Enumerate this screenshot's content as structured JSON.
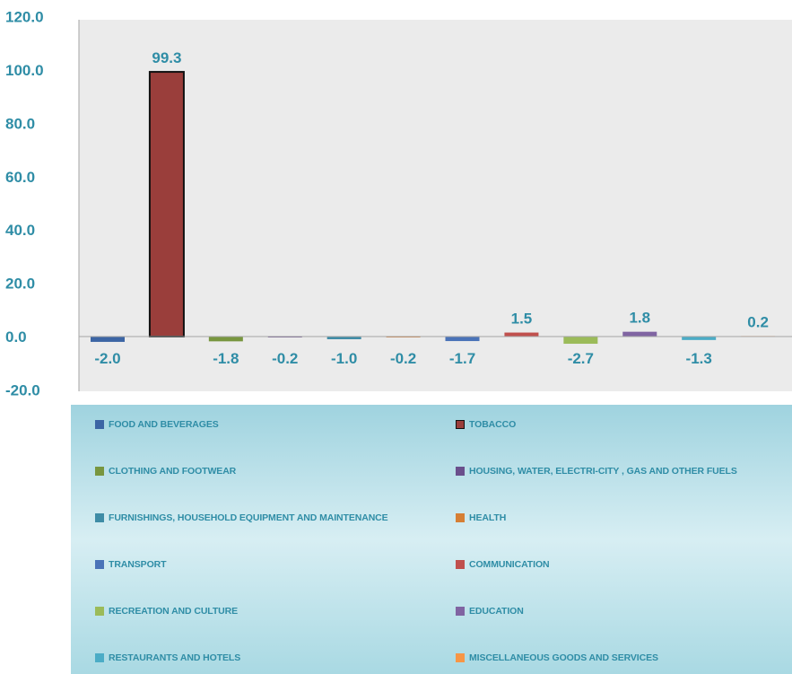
{
  "chart_data": {
    "type": "bar",
    "categories": [
      "FOOD AND BEVERAGES",
      "TOBACCO",
      "CLOTHING AND FOOTWEAR",
      "HOUSING, WATER, ELECTRI-CITY , GAS AND OTHER FUELS",
      "FURNISHINGS, HOUSEHOLD EQUIPMENT AND MAINTENANCE",
      "HEALTH",
      "TRANSPORT",
      "COMMUNICATION",
      "RECREATION AND CULTURE",
      "EDUCATION",
      "RESTAURANTS AND HOTELS",
      "MISCELLANEOUS GOODS AND SERVICES"
    ],
    "values": [
      -2.0,
      99.3,
      -1.8,
      -0.2,
      -1.0,
      -0.2,
      -1.7,
      1.5,
      -2.7,
      1.8,
      -1.3,
      0.2
    ],
    "value_labels": [
      "-2.0",
      "99.3",
      "-1.8",
      "-0.2",
      "-1.0",
      "-0.2",
      "-1.7",
      "1.5",
      "-2.7",
      "1.8",
      "-1.3",
      "0.2"
    ],
    "colors": [
      "#3c65a4",
      "#9a3e3b",
      "#78963f",
      "#6a4f8c",
      "#3e8ca6",
      "#d67f35",
      "#4a73b8",
      "#c0504d",
      "#9bbb59",
      "#8064a2",
      "#4bacc6",
      "#f79646"
    ],
    "y_ticks": [
      "120.0",
      "100.0",
      "80.0",
      "60.0",
      "40.0",
      "20.0",
      "0.0",
      "-20.0"
    ],
    "ylim": [
      -20,
      120
    ],
    "legend_position": "bottom",
    "grid": false,
    "title": "",
    "xlabel": "",
    "ylabel": ""
  }
}
